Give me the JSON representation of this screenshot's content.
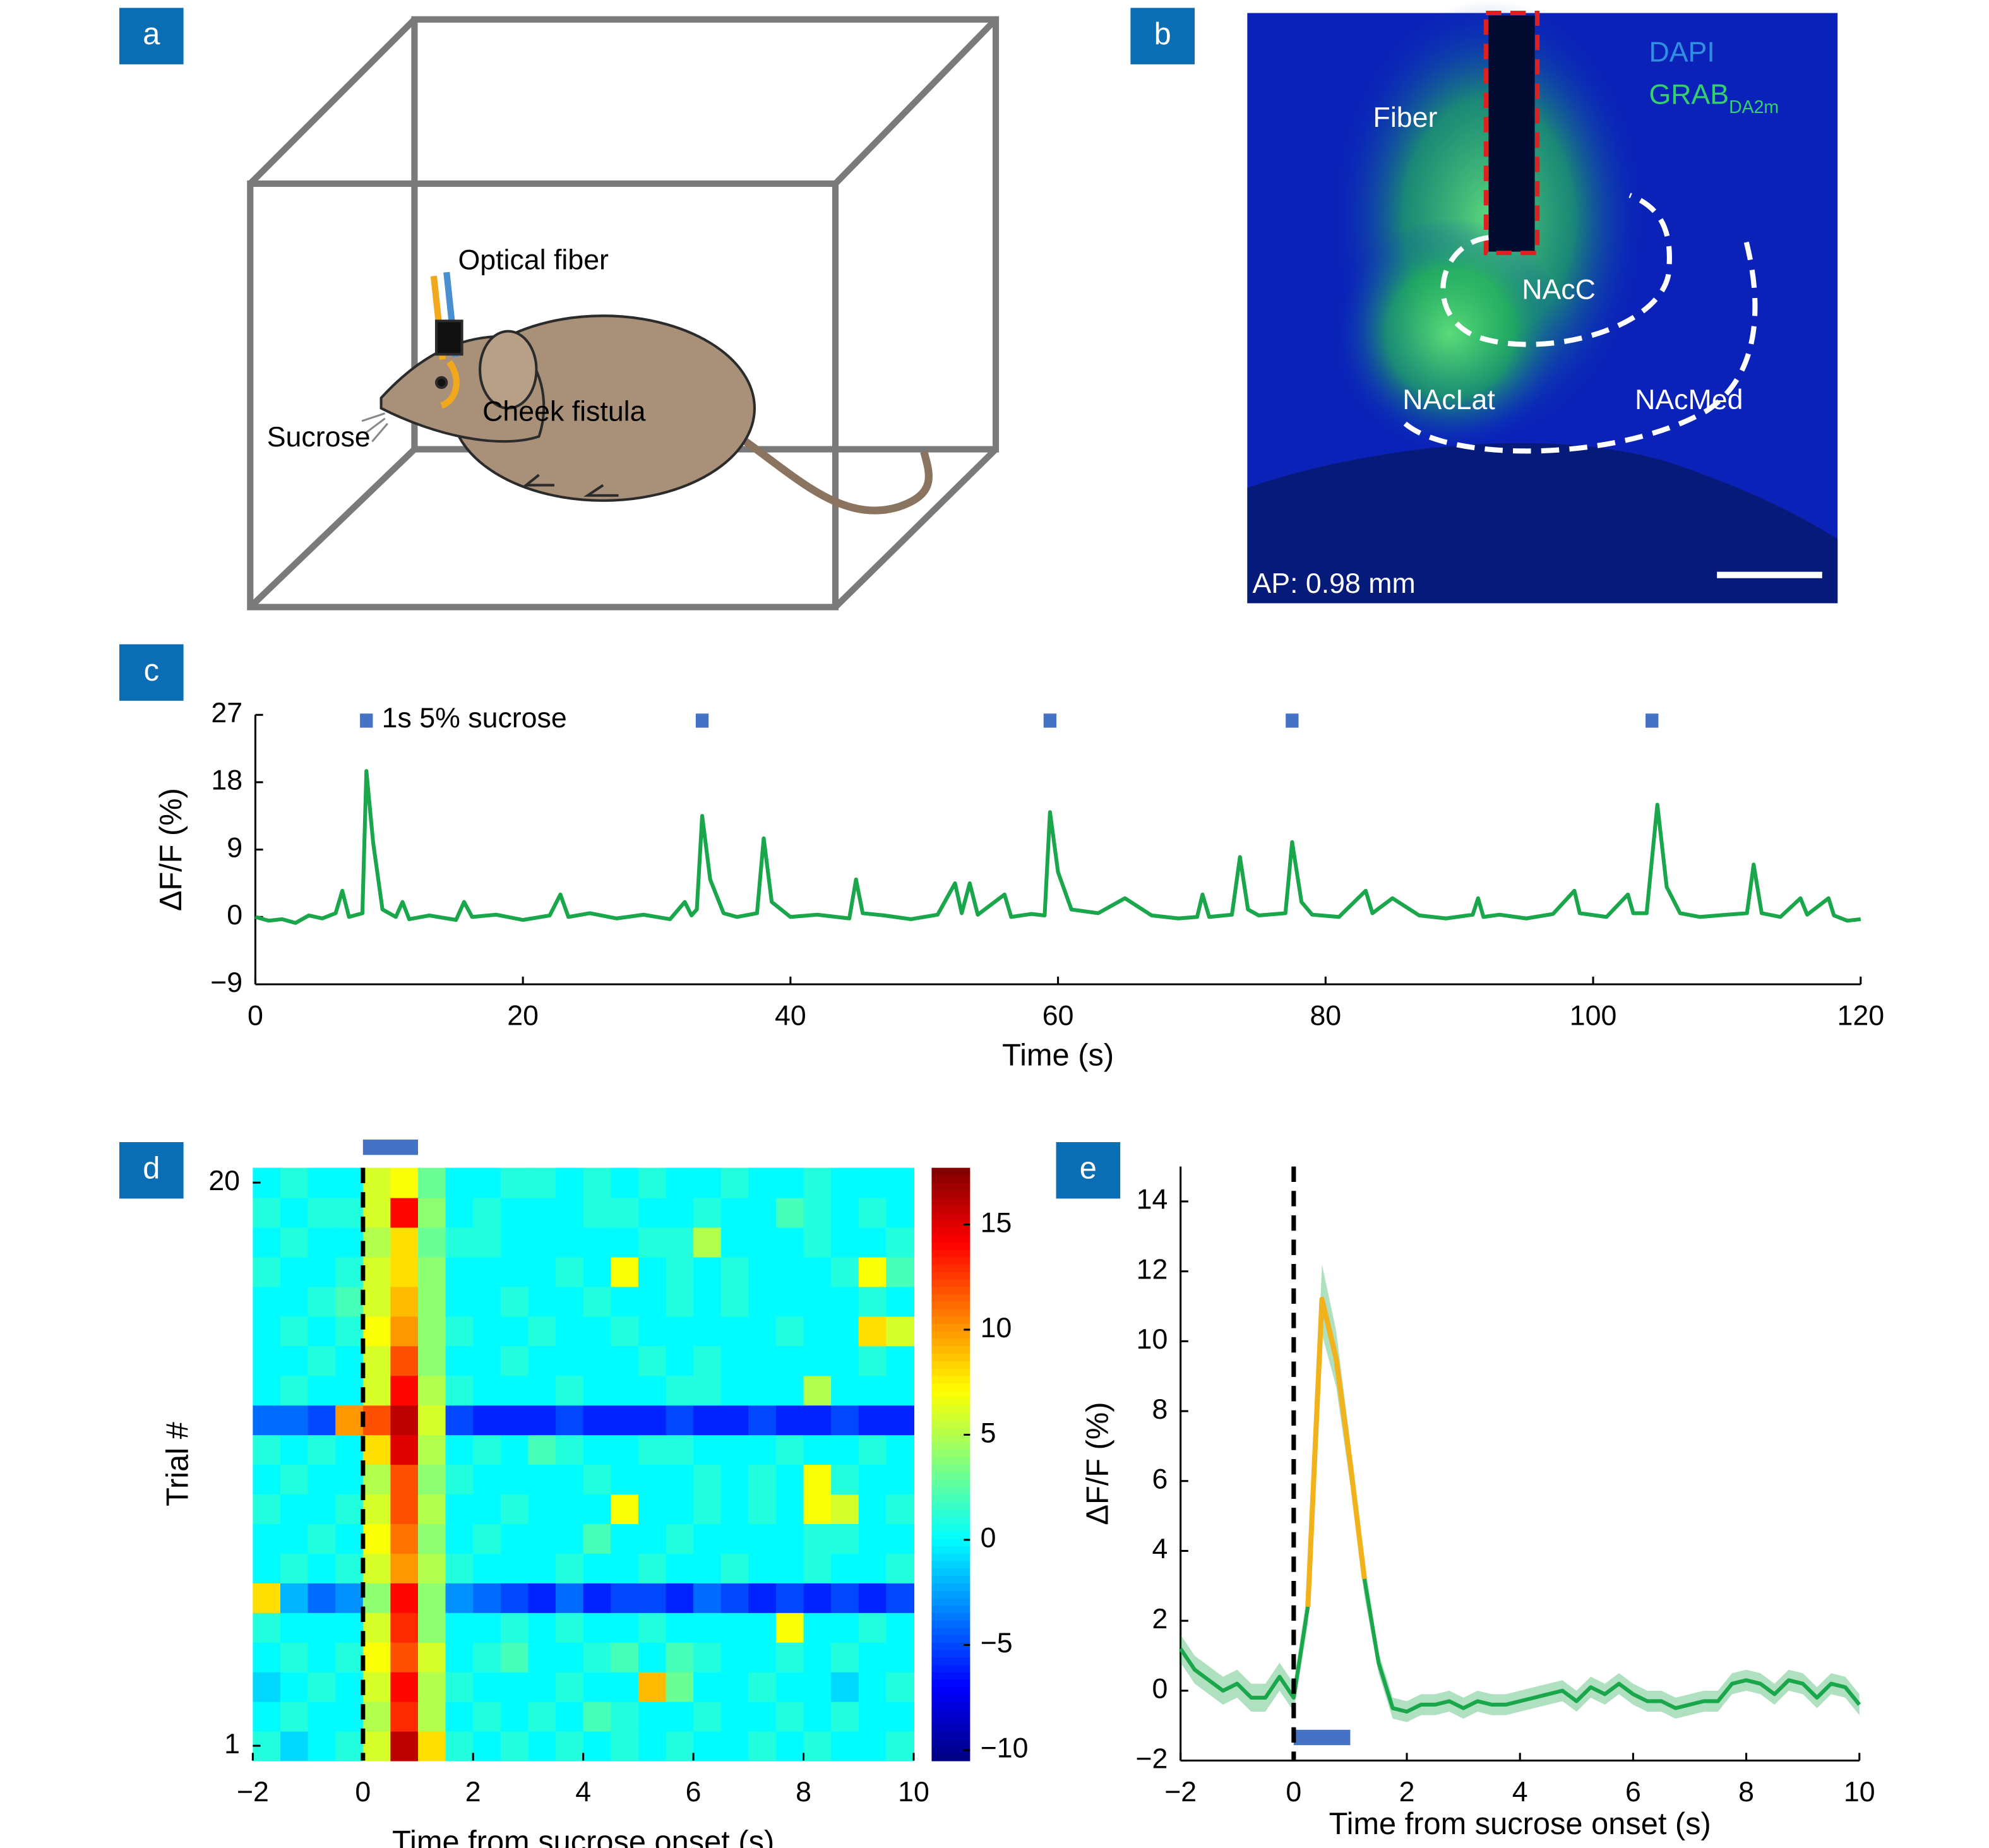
{
  "panel_labels": [
    "a",
    "b",
    "c",
    "d",
    "e"
  ],
  "panel_a": {
    "optical_fiber": "Optical fiber",
    "sucrose": "Sucrose",
    "cheek_fistula": "Cheek fistula"
  },
  "panel_b": {
    "fiber": "Fiber",
    "nacc": "NAcC",
    "naclat": "NAcLat",
    "nacmed": "NAcMed",
    "dapi": "DAPI",
    "grab": "GRAB",
    "grab_sub": "DA2m",
    "ap": "AP: 0.98 mm"
  },
  "chart_data": [
    {
      "type": "line",
      "xlabel": "Time (s)",
      "ylabel": "ΔF/F (%)",
      "x": [
        0,
        1,
        2,
        3,
        4,
        5,
        6,
        6.5,
        7,
        8,
        8.3,
        8.8,
        9.5,
        10.5,
        11,
        11.5,
        13,
        15,
        15.6,
        16.2,
        18,
        20,
        22,
        22.8,
        23.4,
        25,
        27,
        29,
        31,
        32.1,
        32.6,
        33,
        33.4,
        34,
        35,
        36,
        37.5,
        38,
        38.6,
        40,
        42,
        44.4,
        44.9,
        45.4,
        47,
        49,
        51,
        52.3,
        52.8,
        53.4,
        54,
        56,
        56.5,
        58,
        59,
        59.4,
        60,
        61,
        63,
        65,
        67,
        69,
        70.4,
        70.8,
        71.3,
        73,
        73.6,
        74.2,
        75,
        77,
        77.5,
        78.2,
        79,
        81,
        83,
        83.5,
        85,
        87,
        89,
        91,
        91.4,
        91.8,
        93,
        95,
        97,
        98.6,
        99,
        101,
        102.6,
        103,
        104,
        104.8,
        105.5,
        106.5,
        108,
        110,
        111.5,
        112,
        112.6,
        114,
        115.5,
        116,
        117.6,
        118,
        119,
        120
      ],
      "series": [
        {
          "color": "#1aa64a",
          "values": [
            0,
            -0.5,
            -0.3,
            -0.8,
            0.2,
            -0.2,
            0.5,
            3.5,
            0,
            0.5,
            19.5,
            10,
            1,
            0,
            2,
            -0.3,
            0.2,
            -0.4,
            2,
            0,
            0.3,
            -0.4,
            0.2,
            3,
            0,
            0.5,
            -0.2,
            0.3,
            -0.3,
            2,
            0.2,
            1,
            13.5,
            5,
            0.5,
            0,
            0.5,
            10.5,
            2,
            0,
            0.3,
            -0.2,
            5,
            0.5,
            0.2,
            -0.3,
            0.3,
            4.5,
            0.5,
            4.5,
            0.3,
            3,
            0,
            0.4,
            0.2,
            14,
            6,
            1,
            0.5,
            2.5,
            0.2,
            -0.2,
            0,
            3,
            0,
            0.3,
            8,
            1,
            0.2,
            0.5,
            10,
            2,
            0.3,
            0,
            3.5,
            0.5,
            2.5,
            0.2,
            -0.2,
            0.3,
            2.5,
            0,
            0.3,
            -0.2,
            0.4,
            3.5,
            0.5,
            0,
            3,
            0.5,
            0.5,
            15,
            4,
            0.5,
            0,
            0.3,
            0.5,
            7,
            0.5,
            0,
            2.5,
            0.3,
            2.5,
            0.2,
            -0.5,
            -0.3
          ]
        }
      ],
      "markers": {
        "name": "1s 5% sucrose",
        "color": "#4472c4",
        "x": [
          8.3,
          33.4,
          59.4,
          77.5,
          104.4
        ]
      },
      "xlim": [
        0,
        120
      ],
      "ylim": [
        -9,
        27
      ],
      "xticks": [
        0,
        20,
        40,
        60,
        80,
        100,
        120
      ],
      "yticks": [
        {
          "value": -9,
          "label": "−9"
        },
        0,
        9,
        18,
        27
      ]
    },
    {
      "type": "heatmap",
      "xlabel": "Time from sucrose onset (s)",
      "ylabel": "Trial #",
      "xbins": [
        -2,
        -1.5,
        -1,
        -0.5,
        0,
        0.5,
        1,
        1.5,
        2,
        2.5,
        3,
        3.5,
        4,
        4.5,
        5,
        5.5,
        6,
        6.5,
        7,
        7.5,
        8,
        8.5,
        9,
        9.5,
        10
      ],
      "z": [
        [
          1,
          -1,
          0,
          1,
          6,
          16,
          8,
          1,
          0,
          1,
          0,
          1,
          0,
          1,
          0,
          1,
          0,
          0,
          1,
          0,
          1,
          0,
          0,
          1
        ],
        [
          0,
          1,
          0,
          0,
          5,
          13,
          5,
          0,
          1,
          0,
          1,
          0,
          2,
          1,
          0,
          0,
          1,
          0,
          0,
          1,
          0,
          1,
          0,
          0
        ],
        [
          -1,
          0,
          1,
          0,
          6,
          14,
          5,
          1,
          0,
          0,
          0,
          1,
          0,
          0,
          9,
          3,
          0,
          0,
          1,
          0,
          0,
          -1,
          0,
          1
        ],
        [
          0,
          1,
          0,
          1,
          7,
          12,
          6,
          0,
          1,
          2,
          0,
          0,
          1,
          2,
          0,
          2,
          1,
          0,
          0,
          1,
          0,
          1,
          0,
          0
        ],
        [
          1,
          0,
          0,
          0,
          6,
          13,
          4,
          0,
          0,
          1,
          0,
          1,
          0,
          0,
          1,
          0,
          0,
          0,
          0,
          7,
          0,
          0,
          1,
          0
        ],
        [
          8,
          -2,
          -4,
          -3,
          4,
          14,
          4,
          -3,
          -4,
          -5,
          -6,
          -4,
          -6,
          -5,
          -5,
          -6,
          -4,
          -5,
          -6,
          -5,
          -6,
          -5,
          -6,
          -5
        ],
        [
          0,
          1,
          0,
          1,
          6,
          10,
          5,
          1,
          0,
          0,
          0,
          1,
          0,
          0,
          1,
          0,
          0,
          1,
          0,
          0,
          1,
          0,
          0,
          1
        ],
        [
          0,
          0,
          1,
          0,
          7,
          11,
          4,
          0,
          1,
          0,
          0,
          0,
          2,
          0,
          0,
          1,
          0,
          0,
          0,
          0,
          1,
          1,
          0,
          0
        ],
        [
          1,
          0,
          0,
          1,
          6,
          12,
          5,
          0,
          0,
          1,
          0,
          0,
          0,
          7,
          0,
          0,
          1,
          0,
          1,
          0,
          7,
          6,
          0,
          1
        ],
        [
          0,
          1,
          0,
          0,
          5,
          12,
          4,
          1,
          0,
          0,
          0,
          0,
          1,
          0,
          0,
          0,
          1,
          0,
          1,
          0,
          7,
          1,
          0,
          0
        ],
        [
          1,
          0,
          1,
          0,
          8,
          15,
          5,
          0,
          1,
          0,
          2,
          1,
          0,
          0,
          1,
          1,
          0,
          0,
          0,
          1,
          0,
          0,
          1,
          0
        ],
        [
          -4,
          -4,
          -5,
          10,
          12,
          16,
          6,
          -5,
          -6,
          -6,
          -6,
          -5,
          -6,
          -6,
          -6,
          -5,
          -6,
          -6,
          -5,
          -6,
          -6,
          -5,
          -6,
          -6
        ],
        [
          0,
          1,
          0,
          0,
          6,
          14,
          5,
          1,
          0,
          0,
          0,
          1,
          0,
          0,
          0,
          1,
          1,
          0,
          0,
          0,
          5,
          0,
          0,
          0
        ],
        [
          0,
          0,
          1,
          0,
          6,
          12,
          4,
          0,
          0,
          1,
          0,
          0,
          0,
          0,
          1,
          0,
          1,
          0,
          0,
          0,
          0,
          0,
          1,
          0
        ],
        [
          0,
          1,
          0,
          1,
          7,
          10,
          4,
          1,
          0,
          0,
          1,
          0,
          0,
          1,
          0,
          0,
          0,
          0,
          0,
          1,
          0,
          0,
          8,
          6
        ],
        [
          0,
          0,
          1,
          2,
          6,
          9,
          4,
          0,
          0,
          1,
          0,
          0,
          1,
          0,
          0,
          1,
          0,
          1,
          0,
          0,
          0,
          0,
          1,
          0
        ],
        [
          1,
          0,
          0,
          1,
          6,
          8,
          4,
          0,
          0,
          0,
          0,
          1,
          0,
          7,
          0,
          1,
          0,
          1,
          0,
          0,
          0,
          1,
          7,
          2
        ],
        [
          0,
          1,
          0,
          0,
          5,
          8,
          3,
          1,
          1,
          0,
          0,
          0,
          0,
          0,
          1,
          1,
          5,
          0,
          0,
          0,
          1,
          0,
          0,
          1
        ],
        [
          1,
          0,
          1,
          1,
          6,
          14,
          4,
          0,
          1,
          0,
          0,
          0,
          1,
          1,
          0,
          0,
          1,
          0,
          0,
          2,
          1,
          0,
          1,
          0
        ],
        [
          0,
          1,
          0,
          0,
          6,
          7,
          3,
          0,
          0,
          1,
          1,
          0,
          1,
          0,
          1,
          0,
          0,
          1,
          0,
          0,
          1,
          0,
          0,
          0
        ]
      ],
      "colormap": "jet",
      "zlim": [
        -10.5,
        17.7
      ],
      "zticks": [
        {
          "value": -10,
          "label": "−10"
        },
        {
          "value": -5,
          "label": "−5"
        },
        0,
        5,
        10,
        15
      ],
      "xlim": [
        -2,
        10
      ],
      "ylim": [
        0.5,
        20.5
      ],
      "xticks": [
        {
          "value": -2,
          "label": "−2"
        },
        0,
        2,
        4,
        6,
        8,
        10
      ],
      "yticks": [
        1,
        20
      ],
      "stimulus": {
        "x": [
          0,
          1
        ],
        "color": "#4472c4"
      },
      "onset_line": 0
    },
    {
      "type": "line",
      "xlabel": "Time from sucrose onset (s)",
      "ylabel": "ΔF/F (%)",
      "x": [
        -2,
        -1.75,
        -1.5,
        -1.25,
        -1,
        -0.75,
        -0.5,
        -0.25,
        0,
        0.25,
        0.5,
        0.75,
        1,
        1.25,
        1.5,
        1.75,
        2,
        2.25,
        2.5,
        2.75,
        3,
        3.25,
        3.5,
        3.75,
        4,
        4.25,
        4.5,
        4.75,
        5,
        5.25,
        5.5,
        5.75,
        6,
        6.25,
        6.5,
        6.75,
        7,
        7.25,
        7.5,
        7.75,
        8,
        8.25,
        8.5,
        8.75,
        9,
        9.25,
        9.5,
        9.75,
        10
      ],
      "series": [
        {
          "color": "#1aa64a",
          "values": [
            1.2,
            0.6,
            0.3,
            0,
            0.2,
            -0.2,
            -0.2,
            0.4,
            -0.2,
            2.4,
            11.2,
            9.5,
            6.5,
            3.2,
            0.8,
            -0.5,
            -0.6,
            -0.4,
            -0.4,
            -0.3,
            -0.5,
            -0.3,
            -0.4,
            -0.4,
            -0.3,
            -0.2,
            -0.1,
            0,
            -0.3,
            0.1,
            -0.1,
            0.2,
            -0.1,
            -0.3,
            -0.3,
            -0.5,
            -0.4,
            -0.3,
            -0.3,
            0.2,
            0.3,
            0.2,
            -0.1,
            0.3,
            0.2,
            -0.2,
            0.2,
            0.1,
            -0.4
          ],
          "errors": [
            0.4,
            0.4,
            0.4,
            0.4,
            0.4,
            0.4,
            0.4,
            0.4,
            0.4,
            0.5,
            1.0,
            0.8,
            0.6,
            0.5,
            0.3,
            0.3,
            0.3,
            0.3,
            0.3,
            0.3,
            0.3,
            0.3,
            0.3,
            0.3,
            0.3,
            0.3,
            0.3,
            0.3,
            0.3,
            0.3,
            0.3,
            0.3,
            0.3,
            0.3,
            0.3,
            0.3,
            0.3,
            0.3,
            0.3,
            0.3,
            0.3,
            0.3,
            0.3,
            0.3,
            0.3,
            0.3,
            0.3,
            0.3,
            0.3
          ],
          "highlight": {
            "color": "#f2b21b",
            "x": [
              0.25,
              1.25
            ]
          }
        }
      ],
      "xlim": [
        -2,
        10
      ],
      "ylim": [
        -2,
        15
      ],
      "xticks": [
        {
          "value": -2,
          "label": "−2"
        },
        0,
        2,
        4,
        6,
        8,
        10
      ],
      "yticks": [
        {
          "value": -2,
          "label": "−2"
        },
        0,
        2,
        4,
        6,
        8,
        10,
        12,
        14
      ],
      "stimulus": {
        "x": [
          0,
          1
        ],
        "color": "#4472c4"
      },
      "onset_line": 0
    }
  ]
}
